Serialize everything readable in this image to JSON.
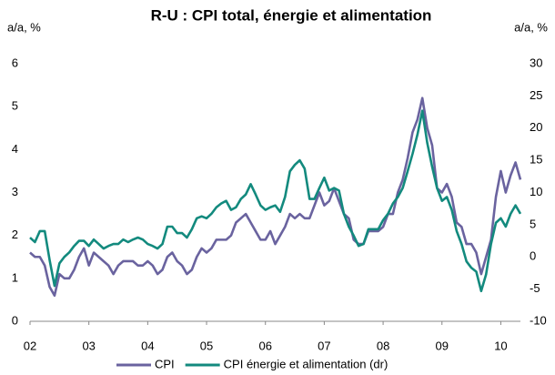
{
  "chart_data": {
    "type": "line",
    "title": "R-U : CPI total, énergie et alimentation",
    "y_label": "a/a, %",
    "y2_label": "a/a, %",
    "categories": [
      "02",
      null,
      null,
      null,
      null,
      null,
      null,
      null,
      null,
      null,
      null,
      null,
      "03",
      null,
      null,
      null,
      null,
      null,
      null,
      null,
      null,
      null,
      null,
      null,
      "04",
      null,
      null,
      null,
      null,
      null,
      null,
      null,
      null,
      null,
      null,
      null,
      "05",
      null,
      null,
      null,
      null,
      null,
      null,
      null,
      null,
      null,
      null,
      null,
      "06",
      null,
      null,
      null,
      null,
      null,
      null,
      null,
      null,
      null,
      null,
      null,
      "07",
      null,
      null,
      null,
      null,
      null,
      null,
      null,
      null,
      null,
      null,
      null,
      "08",
      null,
      null,
      null,
      null,
      null,
      null,
      null,
      null,
      null,
      null,
      null,
      "09",
      null,
      null,
      null,
      null,
      null,
      null,
      null,
      null,
      null,
      null,
      null,
      "10",
      null,
      null,
      null,
      null
    ],
    "series": [
      {
        "name": "CPI",
        "color": "#6a639f",
        "axis": "y",
        "values": [
          1.6,
          1.5,
          1.5,
          1.3,
          0.8,
          0.6,
          1.1,
          1.0,
          1.0,
          1.2,
          1.5,
          1.7,
          1.3,
          1.6,
          1.5,
          1.4,
          1.3,
          1.1,
          1.3,
          1.4,
          1.4,
          1.4,
          1.3,
          1.3,
          1.4,
          1.3,
          1.1,
          1.2,
          1.5,
          1.6,
          1.4,
          1.3,
          1.1,
          1.2,
          1.5,
          1.7,
          1.6,
          1.7,
          1.9,
          1.9,
          1.9,
          2.0,
          2.3,
          2.4,
          2.5,
          2.3,
          2.1,
          1.9,
          1.9,
          2.1,
          1.8,
          2.0,
          2.2,
          2.5,
          2.4,
          2.5,
          2.4,
          2.4,
          2.7,
          3.0,
          2.7,
          2.8,
          3.1,
          2.8,
          2.5,
          2.4,
          1.9,
          1.8,
          1.8,
          2.1,
          2.1,
          2.1,
          2.2,
          2.5,
          2.5,
          3.0,
          3.3,
          3.8,
          4.4,
          4.7,
          5.2,
          4.5,
          4.1,
          3.1,
          3.0,
          3.2,
          2.9,
          2.3,
          2.2,
          1.8,
          1.8,
          1.6,
          1.1,
          1.5,
          1.9,
          2.9,
          3.5,
          3.0,
          3.4,
          3.7,
          3.3
        ]
      },
      {
        "name": "CPI énergie et alimentation (dr)",
        "color": "#138a7e",
        "axis": "y2",
        "values": [
          3.0,
          2.3,
          4.0,
          4.0,
          -0.5,
          -4.5,
          -1.0,
          0.0,
          0.7,
          1.7,
          2.5,
          2.5,
          1.7,
          2.7,
          2.0,
          1.3,
          1.7,
          2.0,
          2.0,
          2.7,
          2.3,
          2.7,
          3.0,
          2.7,
          2.0,
          1.7,
          1.3,
          2.0,
          4.7,
          4.7,
          3.7,
          3.7,
          3.0,
          4.3,
          6.0,
          6.3,
          6.0,
          6.7,
          7.7,
          8.3,
          8.7,
          7.3,
          7.7,
          9.0,
          9.7,
          11.3,
          9.7,
          8.0,
          7.3,
          7.7,
          8.0,
          7.0,
          9.3,
          13.3,
          14.3,
          15.0,
          13.7,
          9.0,
          9.0,
          10.7,
          12.3,
          10.3,
          10.7,
          10.3,
          6.7,
          4.7,
          3.3,
          1.7,
          2.0,
          4.3,
          4.3,
          4.3,
          5.7,
          6.7,
          8.3,
          9.3,
          10.7,
          13.3,
          16.0,
          19.0,
          22.7,
          17.7,
          14.0,
          10.7,
          8.7,
          9.3,
          7.3,
          4.0,
          2.0,
          -0.7,
          -1.7,
          -2.3,
          -5.3,
          -2.7,
          2.0,
          5.3,
          6.0,
          4.7,
          6.7,
          8.0,
          6.7
        ]
      }
    ],
    "ylim": [
      0,
      6
    ],
    "yticks": [
      0,
      1,
      2,
      3,
      4,
      5,
      6
    ],
    "y2lim": [
      -10,
      30
    ],
    "y2ticks": [
      -10,
      -5,
      0,
      5,
      10,
      15,
      20,
      25,
      30
    ],
    "grid": false,
    "legend": "bottom"
  }
}
